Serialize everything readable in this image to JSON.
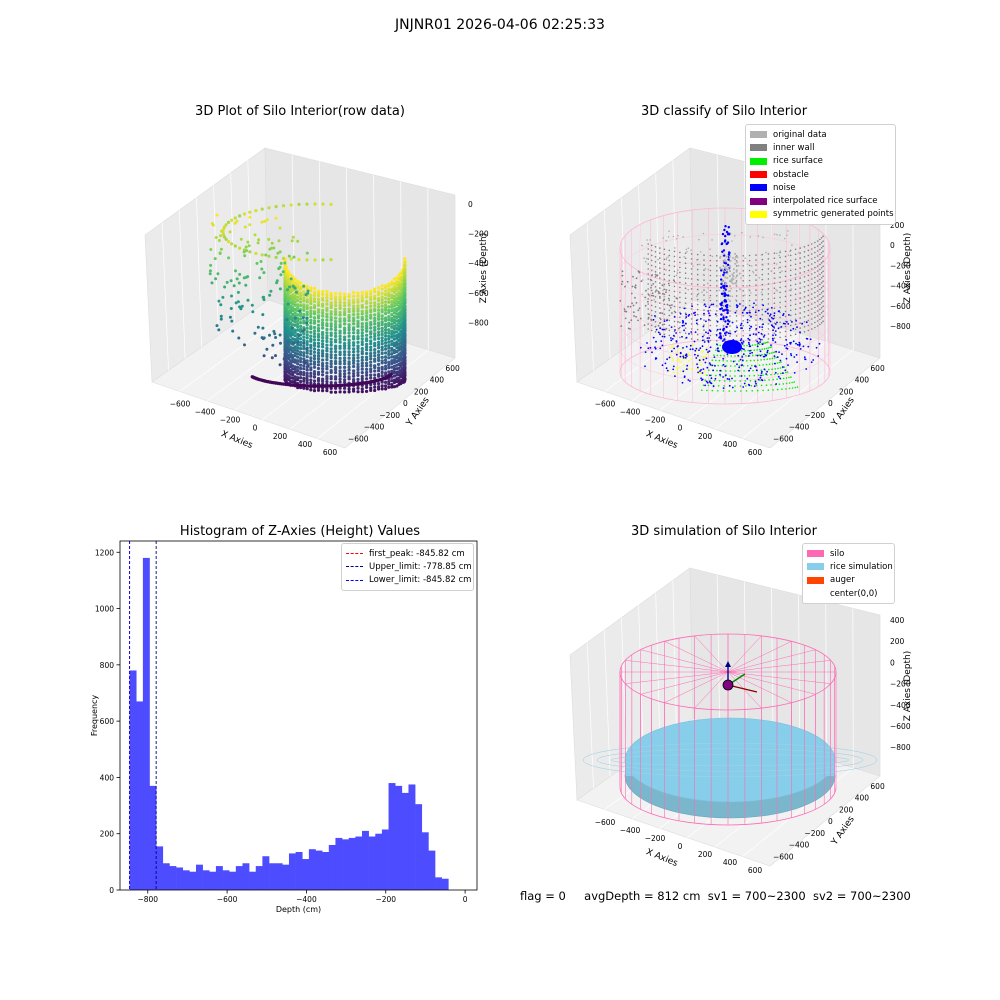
{
  "suptitle": "JNJNR01 2026-04-06 02:25:33",
  "colors": {
    "original": "#b0b0b0",
    "inner_wall": "#808080",
    "rice_surface": "#00ee00",
    "obstacle": "#ff0000",
    "noise": "#0000ff",
    "interpolated": "#800080",
    "symmetric": "#ffff00",
    "silo": "#ff69b4",
    "rice_sim": "#87ceeb",
    "auger": "#ff4500",
    "hist_bar": "#4d4dff"
  },
  "panels": {
    "raw": {
      "title": "3D Plot of Silo Interior(row data)",
      "xlabel": "X Axies",
      "ylabel": "Y Axies",
      "zlabel": "Z Axies (Depth)",
      "xticks": [
        "−600",
        "−400",
        "−200",
        "0",
        "200",
        "400",
        "600"
      ],
      "yticks": [
        "−600",
        "−400",
        "−200",
        "0",
        "200",
        "400",
        "600"
      ],
      "zticks": [
        "0",
        "−200",
        "−400",
        "−600",
        "−800"
      ],
      "colormap": "viridis"
    },
    "classify": {
      "title": "3D classify of Silo Interior",
      "xlabel": "X Axies",
      "ylabel": "Y Axies",
      "zlabel": "Z Axies (Depth)",
      "xticks": [
        "−600",
        "−400",
        "−200",
        "0",
        "200",
        "400",
        "600"
      ],
      "yticks": [
        "−600",
        "−400",
        "−200",
        "0",
        "200",
        "400",
        "600"
      ],
      "zticks": [
        "200",
        "0",
        "−200",
        "−400",
        "−600",
        "−800"
      ],
      "legend": [
        {
          "label": "original data",
          "color": "#b0b0b0"
        },
        {
          "label": "inner wall",
          "color": "#808080"
        },
        {
          "label": "rice surface",
          "color": "#00ee00"
        },
        {
          "label": "obstacle",
          "color": "#ff0000"
        },
        {
          "label": "noise",
          "color": "#0000ff"
        },
        {
          "label": "interpolated rice surface",
          "color": "#800080"
        },
        {
          "label": "symmetric generated points",
          "color": "#ffff00"
        }
      ]
    },
    "histogram": {
      "title": "Histogram of Z-Axies (Height) Values",
      "xlabel": "Depth (cm)",
      "ylabel": "Frequency",
      "legend": [
        {
          "label": "first_peak: -845.82 cm",
          "color": "#ff0000"
        },
        {
          "label": "Upper_limit: -778.85 cm",
          "color": "#00008b"
        },
        {
          "label": "Lower_limit: -845.82 cm",
          "color": "#0000ff"
        }
      ]
    },
    "simulation": {
      "title": "3D simulation of Silo Interior",
      "xlabel": "X Axies",
      "ylabel": "Y Axies",
      "zlabel": "Z Axies (Depth)",
      "xticks": [
        "−600",
        "−400",
        "−200",
        "0",
        "200",
        "400",
        "600"
      ],
      "yticks": [
        "−600",
        "−400",
        "−200",
        "0",
        "200",
        "400",
        "600"
      ],
      "zticks": [
        "400",
        "200",
        "0",
        "−200",
        "−400",
        "−600",
        "−800"
      ],
      "legend": [
        {
          "label": "silo",
          "color": "#ff69b4"
        },
        {
          "label": "rice simulation",
          "color": "#87ceeb"
        },
        {
          "label": "auger",
          "color": "#ff4500"
        },
        {
          "label": "center(0,0)",
          "color": ""
        }
      ]
    }
  },
  "status": {
    "flag": "flag = 0",
    "avg": "avgDepth = 812 cm",
    "sv1": "sv1 = 700~2300",
    "sv2": "sv2 = 700~2300"
  },
  "chart_data": [
    {
      "type": "histogram",
      "title": "Histogram of Z-Axies (Height) Values",
      "xlabel": "Depth (cm)",
      "ylabel": "Frequency",
      "xlim": [
        -870,
        30
      ],
      "ylim": [
        0,
        1240
      ],
      "xticks": [
        -800,
        -600,
        -400,
        -200,
        0
      ],
      "yticks": [
        0,
        200,
        400,
        600,
        800,
        1000,
        1200
      ],
      "bin_start": -845.82,
      "bin_width": 16.74,
      "counts": [
        780,
        670,
        1180,
        370,
        155,
        95,
        85,
        80,
        70,
        65,
        90,
        70,
        65,
        85,
        70,
        65,
        85,
        95,
        65,
        85,
        120,
        95,
        95,
        90,
        130,
        135,
        110,
        145,
        140,
        135,
        160,
        185,
        180,
        185,
        190,
        210,
        190,
        200,
        215,
        380,
        370,
        345,
        375,
        305,
        205,
        140,
        45,
        40
      ],
      "vlines": [
        {
          "name": "first_peak: -845.82 cm",
          "x": -845.82,
          "color": "#ff0000"
        },
        {
          "name": "Upper_limit: -778.85 cm",
          "x": -778.85,
          "color": "#00008b"
        },
        {
          "name": "Lower_limit: -845.82 cm",
          "x": -845.82,
          "color": "#0000ff"
        }
      ],
      "legend_position": "upper right"
    }
  ]
}
